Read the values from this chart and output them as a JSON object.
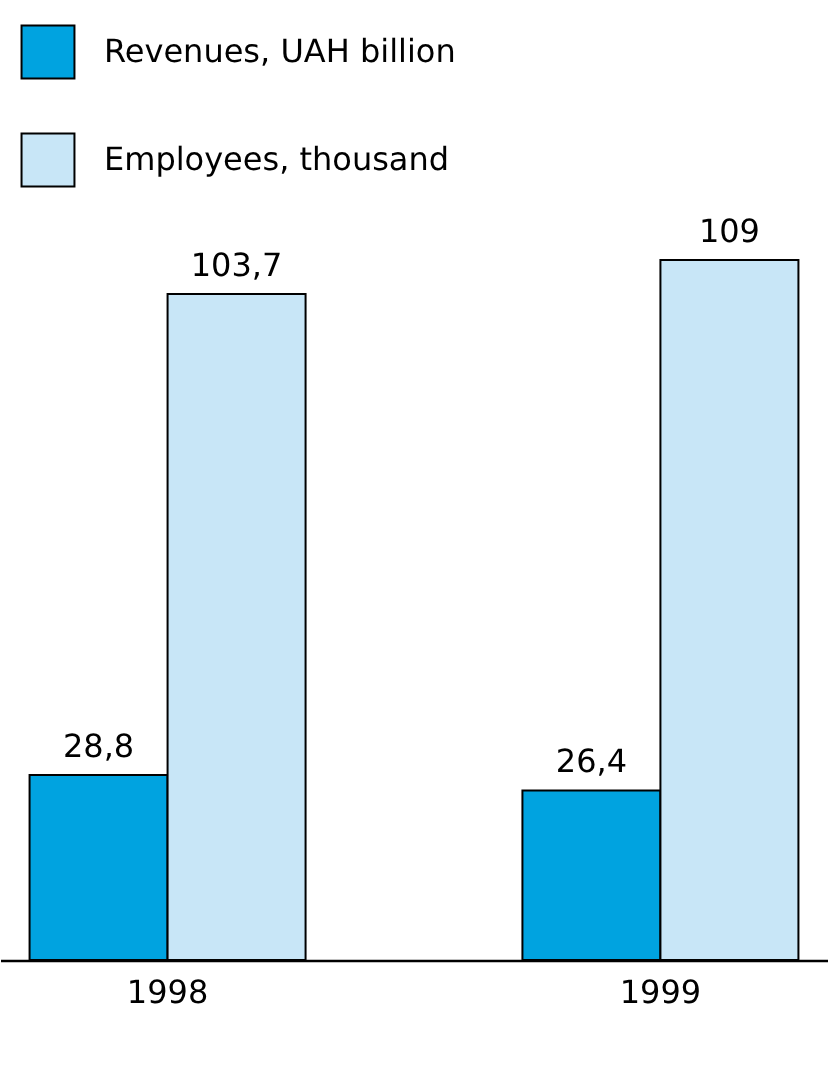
{
  "chart_data": {
    "type": "bar",
    "categories": [
      "1998",
      "1999"
    ],
    "series": [
      {
        "name": "Revenues, UAH billion",
        "color": "#00a3e0",
        "values": [
          28.8,
          26.4
        ],
        "value_labels": [
          "28,8",
          "26,4"
        ]
      },
      {
        "name": "Employees, thousand",
        "color": "#c8e6f7",
        "values": [
          103.7,
          109
        ],
        "value_labels": [
          "103,7",
          "109"
        ]
      }
    ],
    "tick_labels": "x",
    "legend": "top left"
  }
}
